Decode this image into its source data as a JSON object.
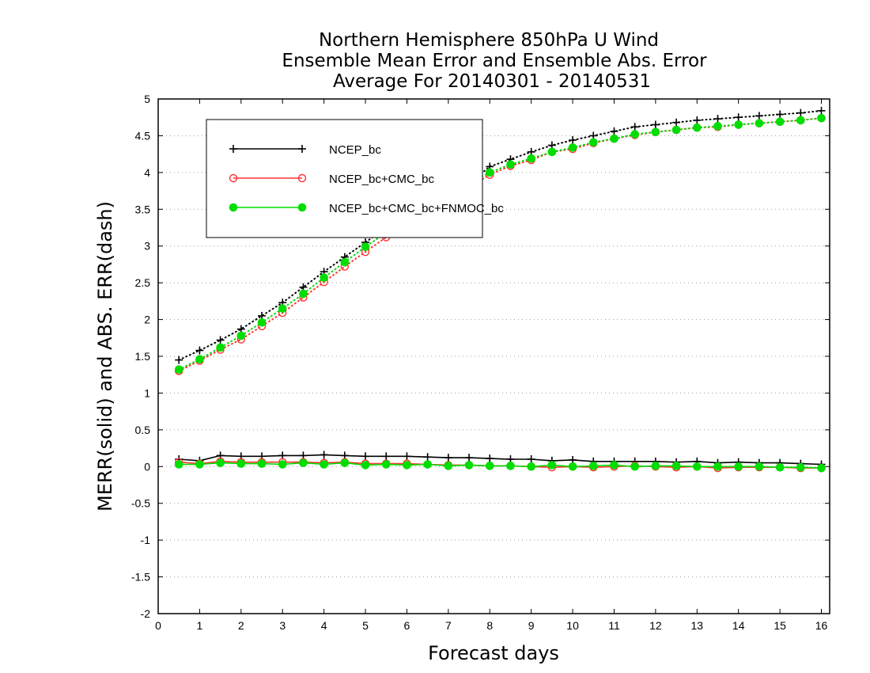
{
  "chart_data": {
    "type": "line",
    "title_lines": [
      "Northern Hemisphere 850hPa U Wind",
      "Ensemble Mean Error and Ensemble Abs. Error",
      "Average For 20140301 - 20140531"
    ],
    "xlabel": "Forecast days",
    "ylabel": "MERR(solid) and ABS. ERR(dash)",
    "xlim": [
      0,
      16.2
    ],
    "ylim": [
      -2,
      5
    ],
    "xticks": [
      "0",
      "1",
      "2",
      "3",
      "4",
      "5",
      "6",
      "7",
      "8",
      "9",
      "10",
      "11",
      "12",
      "13",
      "14",
      "15",
      "16"
    ],
    "yticks": [
      "-2",
      "-1.5",
      "-1",
      "-0.5",
      "0",
      "0.5",
      "1",
      "1.5",
      "2",
      "2.5",
      "3",
      "3.5",
      "4",
      "4.5",
      "5"
    ],
    "grid": "dotted horizontal",
    "legend_position": "top-left",
    "x": [
      0.5,
      1,
      1.5,
      2,
      2.5,
      3,
      3.5,
      4,
      4.5,
      5,
      5.5,
      6,
      6.5,
      7,
      7.5,
      8,
      8.5,
      9,
      9.5,
      10,
      10.5,
      11,
      11.5,
      12,
      12.5,
      13,
      13.5,
      14,
      14.5,
      15,
      15.5,
      16
    ],
    "series": [
      {
        "name": "NCEP_bc",
        "color": "#000000",
        "marker": "plus",
        "merr": [
          0.1,
          0.08,
          0.15,
          0.14,
          0.14,
          0.15,
          0.15,
          0.16,
          0.15,
          0.14,
          0.14,
          0.14,
          0.13,
          0.12,
          0.12,
          0.11,
          0.1,
          0.1,
          0.08,
          0.09,
          0.07,
          0.07,
          0.07,
          0.07,
          0.06,
          0.07,
          0.05,
          0.06,
          0.05,
          0.05,
          0.04,
          0.03
        ],
        "abs_err": [
          1.45,
          1.58,
          1.72,
          1.87,
          2.05,
          2.23,
          2.44,
          2.65,
          2.85,
          3.05,
          3.25,
          3.4,
          3.57,
          3.72,
          3.85,
          4.08,
          4.18,
          4.28,
          4.37,
          4.44,
          4.5,
          4.56,
          4.62,
          4.65,
          4.68,
          4.71,
          4.73,
          4.75,
          4.77,
          4.79,
          4.81,
          4.84
        ]
      },
      {
        "name": "NCEP_bc+CMC_bc",
        "color": "#ff3333",
        "marker": "open-circle",
        "merr": [
          0.06,
          0.04,
          0.07,
          0.06,
          0.06,
          0.06,
          0.06,
          0.05,
          0.06,
          0.04,
          0.04,
          0.04,
          0.03,
          0.02,
          0.02,
          0.01,
          0.01,
          0.0,
          -0.01,
          0.0,
          -0.01,
          0.0,
          0.01,
          0.0,
          -0.01,
          0.0,
          -0.02,
          -0.01,
          -0.01,
          -0.01,
          -0.02,
          -0.02
        ],
        "abs_err": [
          1.3,
          1.44,
          1.59,
          1.73,
          1.91,
          2.09,
          2.3,
          2.51,
          2.72,
          2.92,
          3.12,
          3.3,
          3.48,
          3.65,
          3.8,
          3.97,
          4.09,
          4.17,
          4.28,
          4.32,
          4.4,
          4.46,
          4.51,
          4.55,
          4.58,
          4.61,
          4.62,
          4.65,
          4.67,
          4.69,
          4.71,
          4.74
        ]
      },
      {
        "name": "NCEP_bc+CMC_bc+FNMOC_bc",
        "color": "#00dd00",
        "marker": "filled-circle",
        "merr": [
          0.03,
          0.03,
          0.05,
          0.04,
          0.04,
          0.03,
          0.05,
          0.03,
          0.05,
          0.02,
          0.03,
          0.02,
          0.03,
          0.01,
          0.02,
          0.01,
          0.01,
          0.0,
          0.02,
          0.0,
          0.01,
          0.02,
          0.0,
          0.01,
          0.01,
          0.0,
          0.0,
          0.0,
          0.0,
          -0.01,
          -0.01,
          -0.02
        ],
        "abs_err": [
          1.32,
          1.46,
          1.62,
          1.78,
          1.96,
          2.15,
          2.35,
          2.57,
          2.78,
          2.99,
          3.18,
          3.36,
          3.53,
          3.7,
          3.86,
          4.0,
          4.11,
          4.19,
          4.28,
          4.34,
          4.41,
          4.46,
          4.52,
          4.55,
          4.58,
          4.61,
          4.63,
          4.65,
          4.67,
          4.69,
          4.71,
          4.74
        ]
      }
    ]
  }
}
